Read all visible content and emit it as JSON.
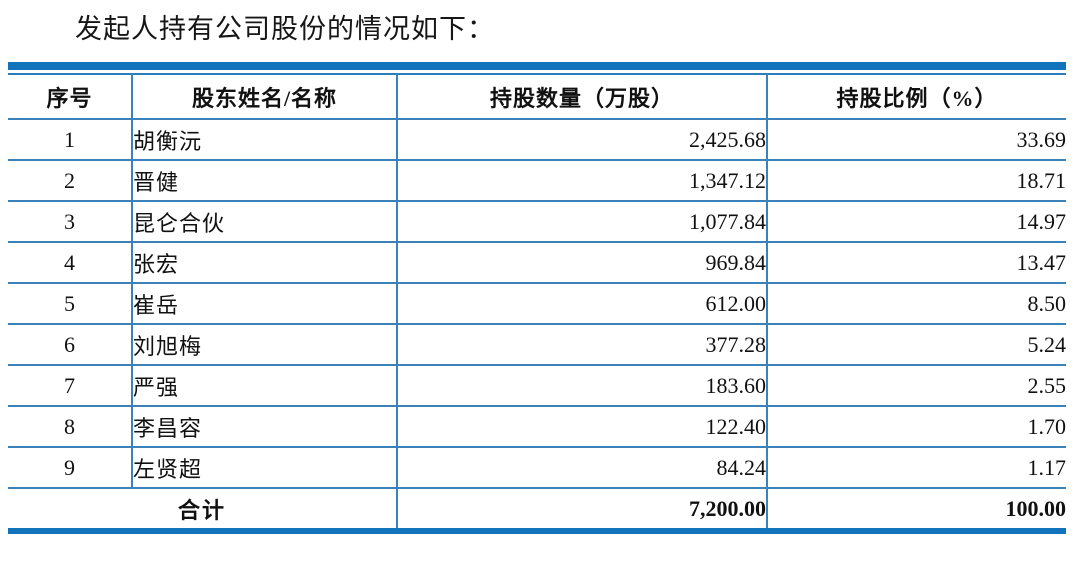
{
  "page": {
    "title": "发起人持有公司股份的情况如下："
  },
  "colors": {
    "accent_blue": "#1274ba",
    "line_blue": "#3c82ba",
    "text": "#111111"
  },
  "table": {
    "headers": [
      "序号",
      "股东姓名/名称",
      "持股数量（万股）",
      "持股比例（%）"
    ],
    "rows": [
      {
        "no": "1",
        "name": "胡衡沅",
        "shares": "2,425.68",
        "pct": "33.69"
      },
      {
        "no": "2",
        "name": "晋健",
        "shares": "1,347.12",
        "pct": "18.71"
      },
      {
        "no": "3",
        "name": "昆仑合伙",
        "shares": "1,077.84",
        "pct": "14.97"
      },
      {
        "no": "4",
        "name": "张宏",
        "shares": "969.84",
        "pct": "13.47"
      },
      {
        "no": "5",
        "name": "崔岳",
        "shares": "612.00",
        "pct": "8.50"
      },
      {
        "no": "6",
        "name": "刘旭梅",
        "shares": "377.28",
        "pct": "5.24"
      },
      {
        "no": "7",
        "name": "严强",
        "shares": "183.60",
        "pct": "2.55"
      },
      {
        "no": "8",
        "name": "李昌容",
        "shares": "122.40",
        "pct": "1.70"
      },
      {
        "no": "9",
        "name": "左贤超",
        "shares": "84.24",
        "pct": "1.17"
      }
    ],
    "total": {
      "label": "合计",
      "shares": "7,200.00",
      "pct": "100.00"
    }
  }
}
